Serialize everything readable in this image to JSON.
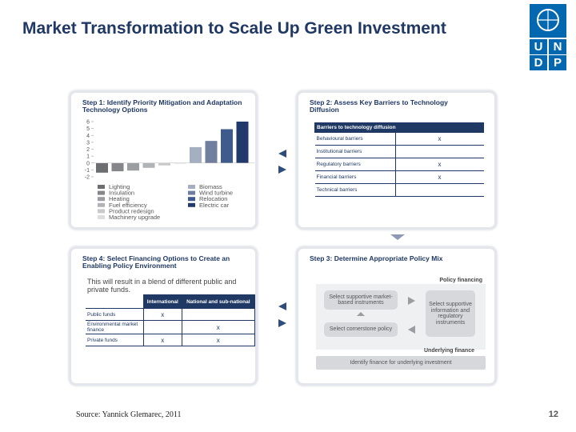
{
  "header": {
    "title": "Market Transformation to Scale Up Green Investment"
  },
  "logo": {
    "letters": [
      "U",
      "N",
      "D",
      "P"
    ]
  },
  "step1": {
    "title": "Step 1: Identify Priority Mitigation and Adaptation Technology Options",
    "chart": {
      "type": "bar",
      "categories": [
        "Lighting",
        "Insulation",
        "Heating",
        "Fuel efficiency",
        "Product redesign",
        "Machinery upgrade",
        "Biomass",
        "Wind turbine",
        "Relocation",
        "Electric car"
      ],
      "values": [
        -1.4,
        -1.2,
        -1.1,
        -0.7,
        -0.35,
        -0.1,
        2.3,
        3.2,
        4.9,
        6.0
      ],
      "colors": [
        "#6d6e71",
        "#85868a",
        "#9c9da0",
        "#b2b3b6",
        "#c8c9cb",
        "#dcdddf",
        "#a4afc2",
        "#6f7f9d",
        "#3f5a8c",
        "#22396b"
      ],
      "ylim": [
        -2,
        6
      ],
      "yticks": [
        -2,
        -1,
        0,
        1,
        2,
        3,
        4,
        5,
        6
      ]
    }
  },
  "step2": {
    "title": "Step 2: Assess Key Barriers to Technology Diffusion",
    "table": {
      "header": "Barriers to technology diffusion",
      "rows": [
        {
          "label": "Behavioural barriers",
          "mark": "x"
        },
        {
          "label": "Institutional barriers"
        },
        {
          "label": "Regulatory barriers",
          "mark": "x"
        },
        {
          "label": "Financial barriers",
          "mark": "x"
        },
        {
          "label": "Technical barriers"
        }
      ]
    }
  },
  "step4": {
    "title": "Step 4: Select Financing Options to Create an Enabling Policy Environment",
    "text": "This will result in a blend of different public and private funds.",
    "table": {
      "columns": [
        "International",
        "National and sub-national"
      ],
      "rows": [
        {
          "label": "Public funds",
          "cells": [
            "x",
            null
          ]
        },
        {
          "label": "Environmental market finance",
          "cells": [
            null,
            "x"
          ]
        },
        {
          "label": "Private funds",
          "cells": [
            "x",
            "x"
          ]
        }
      ]
    }
  },
  "step3": {
    "title": "Step 3: Determine Appropriate Policy Mix",
    "policy_financing": "Policy financing",
    "boxes": [
      "Select supportive market-based instruments",
      "Select supportive information and regulatory instruments",
      "Select cornerstone policy"
    ],
    "underlying_finance": "Underlying finance",
    "bottom": "Identify finance for underlying investment"
  },
  "footer": {
    "source": "Source: Yannick Glemarec, 2011",
    "page": "12"
  }
}
